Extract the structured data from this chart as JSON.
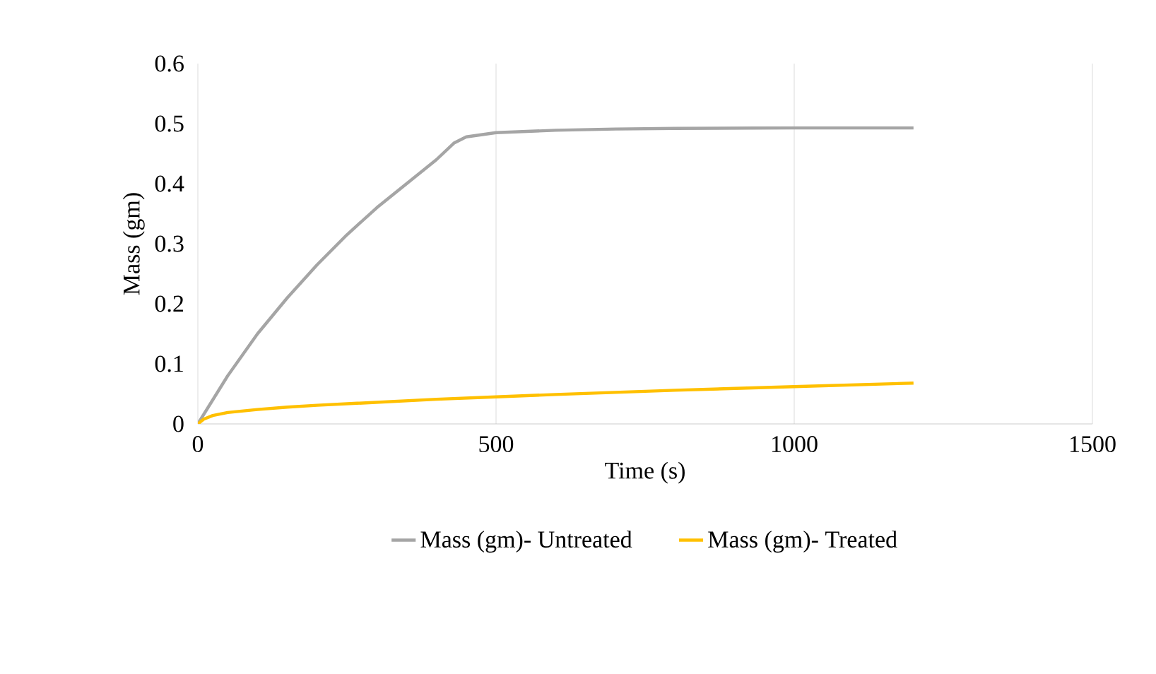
{
  "chart_data": {
    "type": "line",
    "xlabel": "Time (s)",
    "ylabel": "Mass (gm)",
    "xlim": [
      0,
      1500
    ],
    "ylim": [
      0,
      0.6
    ],
    "xticks": [
      0,
      500,
      1000,
      1500
    ],
    "yticks": [
      0,
      0.1,
      0.2,
      0.3,
      0.4,
      0.5,
      0.6
    ],
    "grid": "x",
    "legend": "bottom",
    "marker": "none",
    "line_style": "solid",
    "series": [
      {
        "name": "Mass (gm)- Untreated",
        "color": "#a5a5a5",
        "x": [
          0,
          25,
          50,
          100,
          150,
          200,
          250,
          300,
          350,
          400,
          430,
          450,
          500,
          600,
          700,
          800,
          1000,
          1200
        ],
        "values": [
          0,
          0.04,
          0.08,
          0.15,
          0.21,
          0.265,
          0.315,
          0.36,
          0.4,
          0.44,
          0.468,
          0.478,
          0.485,
          0.489,
          0.491,
          0.492,
          0.493,
          0.493
        ]
      },
      {
        "name": "Mass (gm)- Treated",
        "color": "#ffc000",
        "x": [
          0,
          10,
          25,
          50,
          100,
          150,
          200,
          300,
          400,
          500,
          600,
          800,
          1000,
          1200
        ],
        "values": [
          0,
          0.008,
          0.014,
          0.019,
          0.024,
          0.028,
          0.031,
          0.036,
          0.041,
          0.045,
          0.049,
          0.056,
          0.062,
          0.068
        ]
      }
    ]
  }
}
